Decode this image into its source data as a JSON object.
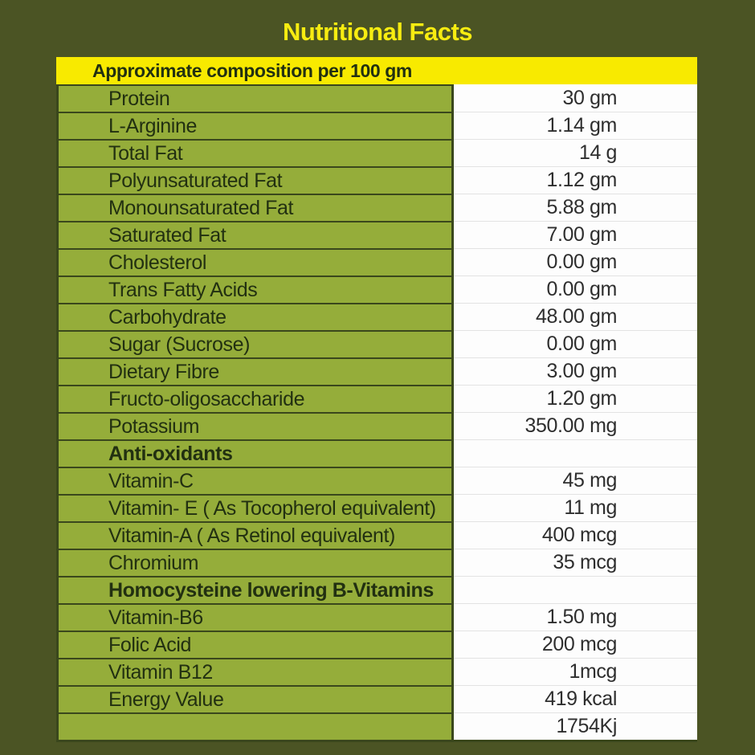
{
  "title": "Nutritional Facts",
  "table": {
    "header": "Approximate composition per 100 gm",
    "rows": [
      {
        "label": "Protein",
        "value": "30 gm",
        "bold": false
      },
      {
        "label": "L-Arginine",
        "value": "1.14 gm",
        "bold": false
      },
      {
        "label": "Total Fat",
        "value": "14 g",
        "bold": false
      },
      {
        "label": "Polyunsaturated Fat",
        "value": "1.12 gm",
        "bold": false
      },
      {
        "label": "Monounsaturated Fat",
        "value": "5.88 gm",
        "bold": false
      },
      {
        "label": "Saturated Fat",
        "value": "7.00 gm",
        "bold": false
      },
      {
        "label": "Cholesterol",
        "value": "0.00 gm",
        "bold": false
      },
      {
        "label": "Trans Fatty Acids",
        "value": "0.00 gm",
        "bold": false
      },
      {
        "label": "Carbohydrate",
        "value": "48.00 gm",
        "bold": false
      },
      {
        "label": "Sugar (Sucrose)",
        "value": "0.00 gm",
        "bold": false
      },
      {
        "label": "Dietary Fibre",
        "value": "3.00 gm",
        "bold": false
      },
      {
        "label": "Fructo-oligosaccharide",
        "value": "1.20 gm",
        "bold": false
      },
      {
        "label": "Potassium",
        "value": "350.00 mg",
        "bold": false
      },
      {
        "label": "Anti-oxidants",
        "value": "",
        "bold": true
      },
      {
        "label": "Vitamin-C",
        "value": "45 mg",
        "bold": false
      },
      {
        "label": "Vitamin- E ( As Tocopherol equivalent)",
        "value": "11 mg",
        "bold": false
      },
      {
        "label": "Vitamin-A ( As Retinol equivalent)",
        "value": "400 mcg",
        "bold": false
      },
      {
        "label": "Chromium",
        "value": "35 mcg",
        "bold": false
      },
      {
        "label": "Homocysteine lowering B-Vitamins",
        "value": "",
        "bold": true
      },
      {
        "label": "Vitamin-B6",
        "value": "1.50 mg",
        "bold": false
      },
      {
        "label": "Folic Acid",
        "value": "200 mcg",
        "bold": false
      },
      {
        "label": "Vitamin B12",
        "value": "1mcg",
        "bold": false
      },
      {
        "label": "Energy Value",
        "value": "419 kcal",
        "bold": false
      },
      {
        "label": "",
        "value": "1754Kj",
        "bold": false
      }
    ]
  },
  "colors": {
    "background": "#4b5424",
    "accent_yellow": "#f8ea00",
    "title_yellow": "#f7ec11",
    "row_green": "#95ad3a",
    "border_dark": "#3a471c",
    "label_text": "#223011",
    "value_text": "#2e2e2e",
    "value_column_bg": "#fdfdfd"
  }
}
